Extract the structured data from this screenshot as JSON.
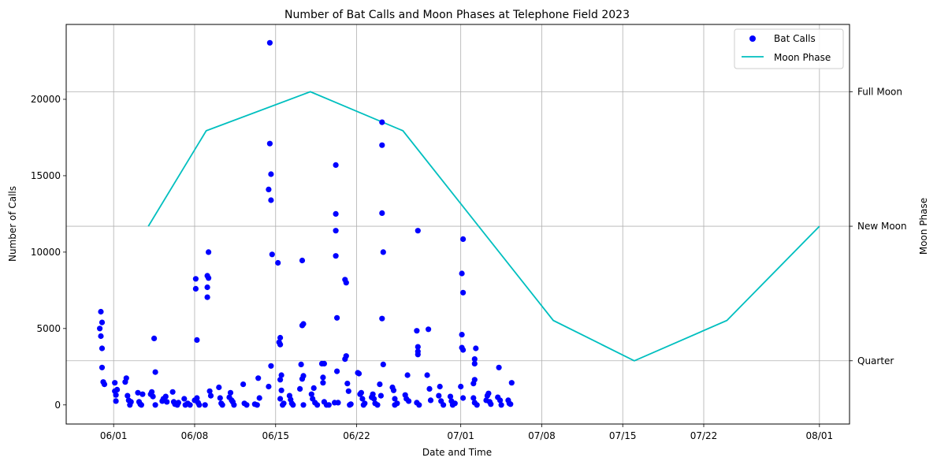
{
  "chart_data": {
    "type": "scatter",
    "title": "Number of Bat Calls and Moon Phases at Telephone Field 2023",
    "xlabel": "Date and Time",
    "ylabel": "Number of Calls",
    "y2label": "Moon Phase",
    "grid": true,
    "legend_position": "top-right",
    "x_ticks": [
      {
        "day": 153,
        "label": "06/01"
      },
      {
        "day": 160,
        "label": "06/08"
      },
      {
        "day": 167,
        "label": "06/15"
      },
      {
        "day": 174,
        "label": "06/22"
      },
      {
        "day": 183,
        "label": "07/01"
      },
      {
        "day": 190,
        "label": "07/08"
      },
      {
        "day": 197,
        "label": "07/15"
      },
      {
        "day": 204,
        "label": "07/22"
      },
      {
        "day": 214,
        "label": "08/01"
      }
    ],
    "xlim": [
      148.9,
      216.6
    ],
    "y_ticks": [
      0,
      5000,
      10000,
      15000,
      20000
    ],
    "ylim": [
      -1250,
      24900
    ],
    "y2_ticks": [
      {
        "value": 3.0,
        "label": "Full Moon"
      },
      {
        "value": 2.0,
        "label": "New Moon"
      },
      {
        "value": 1.0,
        "label": "Quarter"
      }
    ],
    "y2lim": [
      0.53,
      3.5
    ],
    "series": [
      {
        "name": "Bat Calls",
        "kind": "scatter",
        "color": "#0000ff",
        "points": [
          [
            151.9,
            6100
          ],
          [
            152.0,
            5400
          ],
          [
            151.8,
            5000
          ],
          [
            151.9,
            4500
          ],
          [
            152.0,
            3700
          ],
          [
            152.0,
            2450
          ],
          [
            152.1,
            1500
          ],
          [
            152.2,
            1350
          ],
          [
            153.1,
            1450
          ],
          [
            153.1,
            900
          ],
          [
            153.2,
            650
          ],
          [
            153.3,
            1000
          ],
          [
            153.2,
            250
          ],
          [
            154.0,
            1500
          ],
          [
            154.1,
            1750
          ],
          [
            154.2,
            600
          ],
          [
            154.3,
            300
          ],
          [
            154.4,
            0
          ],
          [
            154.5,
            200
          ],
          [
            155.1,
            800
          ],
          [
            155.2,
            200
          ],
          [
            155.3,
            50
          ],
          [
            155.4,
            0
          ],
          [
            155.5,
            700
          ],
          [
            156.2,
            700
          ],
          [
            156.3,
            850
          ],
          [
            156.4,
            550
          ],
          [
            156.5,
            4350
          ],
          [
            156.6,
            2150
          ],
          [
            156.6,
            0
          ],
          [
            157.2,
            250
          ],
          [
            157.3,
            400
          ],
          [
            157.5,
            550
          ],
          [
            157.6,
            200
          ],
          [
            158.1,
            850
          ],
          [
            158.2,
            200
          ],
          [
            158.3,
            50
          ],
          [
            158.5,
            0
          ],
          [
            158.6,
            150
          ],
          [
            159.1,
            400
          ],
          [
            159.2,
            0
          ],
          [
            159.4,
            100
          ],
          [
            159.6,
            0
          ],
          [
            160.0,
            300
          ],
          [
            160.1,
            8250
          ],
          [
            160.1,
            7600
          ],
          [
            160.2,
            4250
          ],
          [
            160.2,
            450
          ],
          [
            160.3,
            150
          ],
          [
            160.4,
            0
          ],
          [
            160.9,
            0
          ],
          [
            161.1,
            8450
          ],
          [
            161.1,
            7700
          ],
          [
            161.1,
            7050
          ],
          [
            161.2,
            8300
          ],
          [
            161.2,
            10000
          ],
          [
            161.3,
            900
          ],
          [
            161.4,
            600
          ],
          [
            162.1,
            1150
          ],
          [
            162.2,
            450
          ],
          [
            162.3,
            100
          ],
          [
            162.4,
            0
          ],
          [
            163.0,
            500
          ],
          [
            163.1,
            800
          ],
          [
            163.2,
            300
          ],
          [
            163.3,
            200
          ],
          [
            163.4,
            0
          ],
          [
            164.2,
            1350
          ],
          [
            164.3,
            100
          ],
          [
            164.5,
            0
          ],
          [
            165.2,
            50
          ],
          [
            165.4,
            0
          ],
          [
            165.5,
            1750
          ],
          [
            165.6,
            450
          ],
          [
            166.5,
            23700
          ],
          [
            166.5,
            17100
          ],
          [
            166.4,
            14100
          ],
          [
            166.6,
            15100
          ],
          [
            166.6,
            13400
          ],
          [
            166.7,
            9850
          ],
          [
            166.6,
            2550
          ],
          [
            166.4,
            1200
          ],
          [
            167.2,
            9300
          ],
          [
            167.4,
            4400
          ],
          [
            167.3,
            4100
          ],
          [
            167.4,
            3950
          ],
          [
            167.5,
            1950
          ],
          [
            167.4,
            1650
          ],
          [
            167.5,
            950
          ],
          [
            167.4,
            400
          ],
          [
            167.6,
            0
          ],
          [
            167.7,
            100
          ],
          [
            168.2,
            600
          ],
          [
            168.3,
            350
          ],
          [
            168.4,
            100
          ],
          [
            168.5,
            0
          ],
          [
            169.2,
            2650
          ],
          [
            169.3,
            5200
          ],
          [
            169.4,
            5300
          ],
          [
            169.3,
            9450
          ],
          [
            169.4,
            1900
          ],
          [
            169.3,
            1700
          ],
          [
            169.1,
            1050
          ],
          [
            169.4,
            0
          ],
          [
            170.1,
            700
          ],
          [
            170.2,
            400
          ],
          [
            170.3,
            1100
          ],
          [
            170.4,
            150
          ],
          [
            170.6,
            0
          ],
          [
            171.0,
            2700
          ],
          [
            171.2,
            2700
          ],
          [
            171.1,
            1800
          ],
          [
            171.1,
            1450
          ],
          [
            171.2,
            200
          ],
          [
            171.4,
            0
          ],
          [
            171.6,
            0
          ],
          [
            172.1,
            150
          ],
          [
            172.2,
            12500
          ],
          [
            172.2,
            11400
          ],
          [
            172.2,
            9750
          ],
          [
            172.2,
            15700
          ],
          [
            172.3,
            5700
          ],
          [
            172.3,
            2200
          ],
          [
            172.4,
            150
          ],
          [
            173.0,
            8200
          ],
          [
            173.1,
            8000
          ],
          [
            173.1,
            3200
          ],
          [
            173.0,
            3000
          ],
          [
            173.2,
            1400
          ],
          [
            173.3,
            900
          ],
          [
            173.4,
            0
          ],
          [
            173.5,
            50
          ],
          [
            174.1,
            2100
          ],
          [
            174.2,
            2050
          ],
          [
            174.3,
            700
          ],
          [
            174.4,
            800
          ],
          [
            174.5,
            400
          ],
          [
            174.6,
            0
          ],
          [
            174.7,
            100
          ],
          [
            175.3,
            500
          ],
          [
            175.4,
            700
          ],
          [
            175.5,
            400
          ],
          [
            175.6,
            100
          ],
          [
            175.8,
            0
          ],
          [
            176.0,
            1350
          ],
          [
            176.1,
            600
          ],
          [
            176.2,
            18500
          ],
          [
            176.2,
            17000
          ],
          [
            176.2,
            12550
          ],
          [
            176.3,
            10000
          ],
          [
            176.2,
            5650
          ],
          [
            176.3,
            2650
          ],
          [
            177.1,
            1150
          ],
          [
            177.2,
            950
          ],
          [
            177.3,
            400
          ],
          [
            177.3,
            0
          ],
          [
            177.5,
            100
          ],
          [
            178.2,
            650
          ],
          [
            178.3,
            400
          ],
          [
            178.4,
            1950
          ],
          [
            178.5,
            250
          ],
          [
            179.3,
            11400
          ],
          [
            179.2,
            4850
          ],
          [
            179.3,
            3800
          ],
          [
            179.3,
            3500
          ],
          [
            179.3,
            3300
          ],
          [
            179.2,
            150
          ],
          [
            179.4,
            0
          ],
          [
            180.1,
            1950
          ],
          [
            180.2,
            4950
          ],
          [
            180.3,
            1050
          ],
          [
            180.4,
            300
          ],
          [
            181.1,
            600
          ],
          [
            181.2,
            1200
          ],
          [
            181.3,
            250
          ],
          [
            181.5,
            0
          ],
          [
            182.1,
            550
          ],
          [
            182.2,
            250
          ],
          [
            182.3,
            0
          ],
          [
            182.5,
            100
          ],
          [
            183.1,
            8600
          ],
          [
            183.2,
            10850
          ],
          [
            183.2,
            7350
          ],
          [
            183.1,
            4600
          ],
          [
            183.1,
            3750
          ],
          [
            183.2,
            3600
          ],
          [
            183.0,
            1200
          ],
          [
            183.2,
            450
          ],
          [
            184.1,
            1400
          ],
          [
            184.2,
            1650
          ],
          [
            184.3,
            3700
          ],
          [
            184.2,
            3000
          ],
          [
            184.2,
            2700
          ],
          [
            184.2,
            150
          ],
          [
            184.4,
            0
          ],
          [
            184.1,
            450
          ],
          [
            185.2,
            300
          ],
          [
            185.3,
            600
          ],
          [
            185.4,
            750
          ],
          [
            185.5,
            200
          ],
          [
            185.6,
            50
          ],
          [
            186.2,
            500
          ],
          [
            186.3,
            2450
          ],
          [
            186.4,
            300
          ],
          [
            186.5,
            0
          ],
          [
            187.1,
            300
          ],
          [
            187.2,
            100
          ],
          [
            187.3,
            50
          ],
          [
            187.4,
            1450
          ]
        ]
      },
      {
        "name": "Moon Phase",
        "kind": "line",
        "color": "#00bfbf",
        "points": [
          [
            156,
            2.0
          ],
          [
            161,
            2.71
          ],
          [
            170,
            3.0
          ],
          [
            178,
            2.71
          ],
          [
            191,
            1.3
          ],
          [
            198,
            1.0
          ],
          [
            206,
            1.3
          ],
          [
            214,
            2.0
          ]
        ]
      }
    ]
  }
}
